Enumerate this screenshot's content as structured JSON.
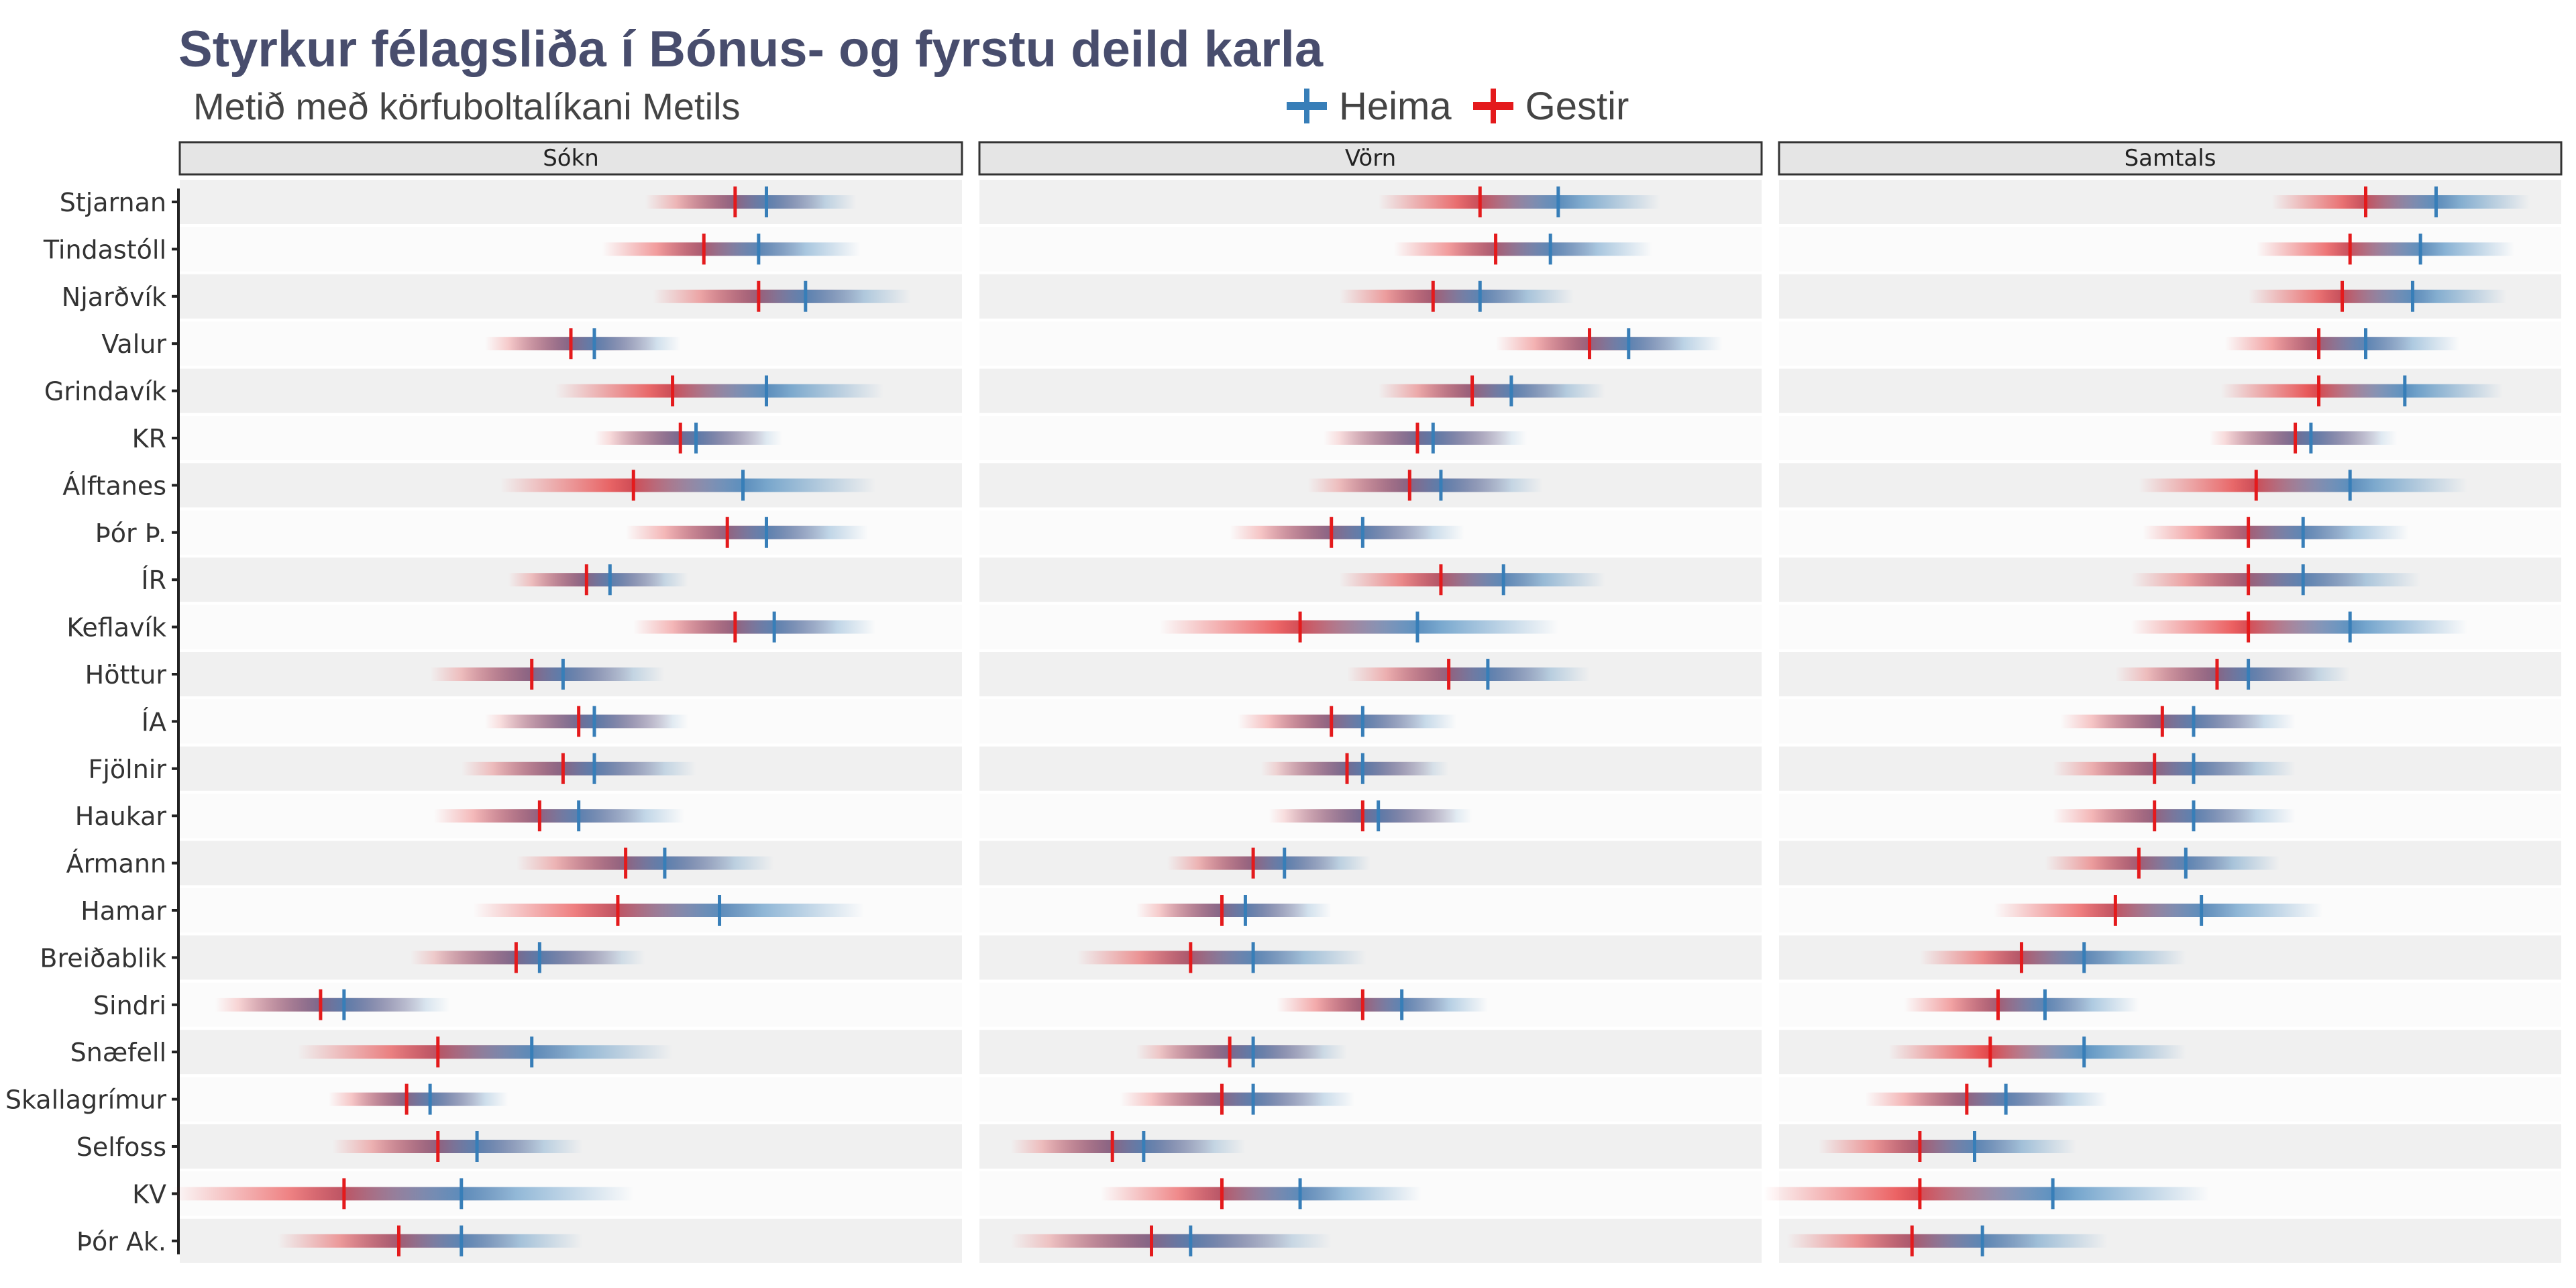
{
  "chart_data": {
    "type": "interval",
    "title": "Styrkur félagsliða í Bónus- og fyrstu deild karla",
    "subtitle": "Metið með körfuboltalíkani Metils",
    "legend": {
      "position": "top",
      "entries": [
        {
          "name": "Heima",
          "color": "#377eb8"
        },
        {
          "name": "Gestir",
          "color": "#e41a1c"
        }
      ]
    },
    "teams": [
      "Stjarnan",
      "Tindastóll",
      "Njarðvík",
      "Valur",
      "Grindavík",
      "KR",
      "Álftanes",
      "Þór Þ.",
      "ÍR",
      "Keflavík",
      "Höttur",
      "ÍA",
      "Fjölnir",
      "Haukar",
      "Ármann",
      "Hamar",
      "Breiðablik",
      "Sindri",
      "Snæfell",
      "Skallagrímur",
      "Selfoss",
      "KV",
      "Þór Ak."
    ],
    "x_range": [
      0,
      100
    ],
    "panels": [
      {
        "name": "Sókn",
        "home": [
          75,
          74,
          80,
          53,
          75,
          66,
          72,
          75,
          55,
          76,
          49,
          53,
          53,
          51,
          62,
          69,
          46,
          21,
          45,
          32,
          38,
          36,
          36
        ],
        "away": [
          71,
          67,
          74,
          50,
          63,
          64,
          58,
          70,
          52,
          71,
          45,
          51,
          49,
          46,
          57,
          56,
          43,
          18,
          33,
          29,
          33,
          21,
          28
        ],
        "spread": [
          23,
          26,
          27,
          22,
          30,
          22,
          34,
          26,
          20,
          26,
          26,
          24,
          26,
          27,
          28,
          37,
          27,
          27,
          36,
          20,
          27,
          44,
          31
        ]
      },
      {
        "name": "Vörn",
        "home": [
          74,
          73,
          64,
          83,
          68,
          58,
          59,
          49,
          67,
          56,
          65,
          49,
          49,
          51,
          39,
          34,
          35,
          54,
          35,
          35,
          21,
          41,
          27
        ],
        "away": [
          64,
          66,
          58,
          78,
          63,
          56,
          55,
          45,
          59,
          41,
          60,
          45,
          47,
          49,
          35,
          31,
          27,
          49,
          32,
          31,
          17,
          31,
          22
        ],
        "spread": [
          26,
          26,
          24,
          24,
          24,
          24,
          26,
          26,
          26,
          36,
          26,
          24,
          22,
          24,
          22,
          22,
          29,
          22,
          24,
          26,
          26,
          31,
          36
        ]
      },
      {
        "name": "Samtals",
        "home": [
          84,
          82,
          81,
          75,
          80,
          68,
          73,
          67,
          67,
          73,
          60,
          53,
          53,
          53,
          52,
          54,
          39,
          34,
          39,
          29,
          25,
          35,
          26
        ],
        "away": [
          75,
          73,
          72,
          69,
          69,
          66,
          61,
          60,
          60,
          60,
          56,
          49,
          48,
          48,
          46,
          43,
          31,
          28,
          27,
          24,
          18,
          18,
          17
        ],
        "spread": [
          24,
          24,
          24,
          24,
          25,
          22,
          30,
          27,
          30,
          30,
          26,
          26,
          26,
          26,
          24,
          31,
          26,
          24,
          26,
          26,
          26,
          40,
          32
        ]
      }
    ]
  }
}
